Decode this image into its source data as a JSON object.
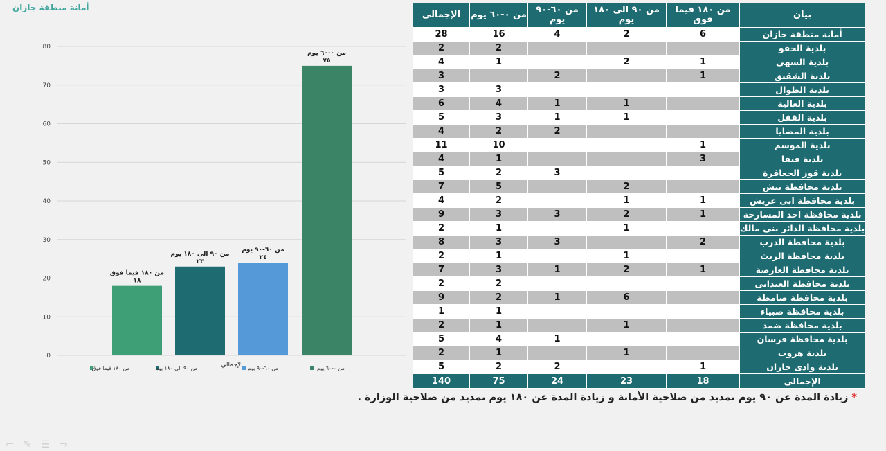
{
  "header": {
    "logo_text": "أمانة منطقة جازان"
  },
  "chart_data": {
    "type": "bar",
    "categories": [
      "من ١٨٠ فيما فوق",
      "من ٩٠ الى ١٨٠ يوم",
      "من ٦٠-٩٠ يوم",
      "من ٠-٦٠ يوم"
    ],
    "category_label_lines": [
      [
        "من ١٨٠ فيما فوق"
      ],
      [
        "من ٩٠ الى ١٨٠ يوم"
      ],
      [
        "من ٦٠-٩٠ يوم"
      ],
      [
        "من ٠-٦٠ يوم"
      ]
    ],
    "values": [
      18,
      23,
      24,
      75
    ],
    "value_labels": [
      "١٨",
      "٢٣",
      "٢٤",
      "٧٥"
    ],
    "colors": [
      "#3e9e75",
      "#1f6b72",
      "#5599d9",
      "#3c8466"
    ],
    "legend": [
      "من ١٨٠ فيما فوق",
      "من ٩٠ الى ١٨٠ يوم",
      "من ٦٠-٩٠ يوم",
      "من ٠-٦٠ يوم"
    ],
    "xlabel": "الإجمالي",
    "ylim": [
      0,
      80
    ],
    "yticks": [
      0,
      10,
      20,
      30,
      40,
      50,
      60,
      70,
      80
    ],
    "grid": true,
    "legend_position": "bottom"
  },
  "table": {
    "headers": [
      "بيان",
      "من ١٨٠ فيما فوق",
      "من ٩٠ الى ١٨٠ يوم",
      "من ٦٠-٩٠ يوم",
      "من ٠-٦٠ يوم",
      "الإجمالى"
    ],
    "rows": [
      {
        "name": "أمانة منطقة جازان",
        "values": [
          "6",
          "2",
          "4",
          "16",
          "28"
        ]
      },
      {
        "name": "بلدية الحقو",
        "values": [
          "",
          "",
          "",
          "2",
          "2"
        ]
      },
      {
        "name": "بلدية السهى",
        "values": [
          "1",
          "2",
          "",
          "1",
          "4"
        ]
      },
      {
        "name": "بلدية الشقيق",
        "values": [
          "1",
          "",
          "2",
          "",
          "3"
        ]
      },
      {
        "name": "بلدية الطوال",
        "values": [
          "",
          "",
          "",
          "3",
          "3"
        ]
      },
      {
        "name": "بلدية العالية",
        "values": [
          "",
          "1",
          "1",
          "4",
          "6"
        ]
      },
      {
        "name": "بلدية القفل",
        "values": [
          "",
          "1",
          "1",
          "3",
          "5"
        ]
      },
      {
        "name": "بلدية المضايا",
        "values": [
          "",
          "",
          "2",
          "2",
          "4"
        ]
      },
      {
        "name": "بلدية الموسم",
        "values": [
          "1",
          "",
          "",
          "10",
          "11"
        ]
      },
      {
        "name": "بلدية فيفا",
        "values": [
          "3",
          "",
          "",
          "1",
          "4"
        ]
      },
      {
        "name": "بلدية قوز الجعافرة",
        "values": [
          "",
          "",
          "3",
          "2",
          "5"
        ]
      },
      {
        "name": "بلدية محافظة بيش",
        "values": [
          "",
          "2",
          "",
          "5",
          "7"
        ]
      },
      {
        "name": "بلدية محافظة ابى عريش",
        "values": [
          "1",
          "1",
          "",
          "2",
          "4"
        ]
      },
      {
        "name": "بلدية محافظة احد المسارحة",
        "values": [
          "1",
          "2",
          "3",
          "3",
          "9"
        ]
      },
      {
        "name": "بلدية محافظة الدائر بنى مالك",
        "values": [
          "",
          "1",
          "",
          "1",
          "2"
        ]
      },
      {
        "name": "بلدية محافظة الدرب",
        "values": [
          "2",
          "",
          "3",
          "3",
          "8"
        ]
      },
      {
        "name": "بلدية محافظة الريث",
        "values": [
          "",
          "1",
          "",
          "1",
          "2"
        ]
      },
      {
        "name": "بلدية محافظة العارضة",
        "values": [
          "1",
          "2",
          "1",
          "3",
          "7"
        ]
      },
      {
        "name": "بلدية محافظة العيدابى",
        "values": [
          "",
          "",
          "",
          "2",
          "2"
        ]
      },
      {
        "name": "بلدية محافظة صامطة",
        "values": [
          "",
          "6",
          "1",
          "2",
          "9"
        ]
      },
      {
        "name": "بلدية محافظة صبياء",
        "values": [
          "",
          "",
          "",
          "1",
          "1"
        ]
      },
      {
        "name": "بلدية محافظة ضمد",
        "values": [
          "",
          "1",
          "",
          "1",
          "2"
        ]
      },
      {
        "name": "بلدية محافظة فرسان",
        "values": [
          "",
          "",
          "1",
          "4",
          "5"
        ]
      },
      {
        "name": "بلدية هروب",
        "values": [
          "",
          "1",
          "",
          "1",
          "2"
        ]
      },
      {
        "name": "بلدية وادى جازان",
        "values": [
          "1",
          "",
          "2",
          "2",
          "5"
        ]
      }
    ],
    "total": {
      "name": "الإجمالى",
      "values": [
        "18",
        "23",
        "24",
        "75",
        "140"
      ]
    }
  },
  "footnote": {
    "star": "*",
    "text": "زيادة المدة عن ٩٠ يوم تمديد من صلاحية الأمانة و زيادة المدة عن ١٨٠ يوم تمديد من صلاحية الوزارة ."
  },
  "nav": {
    "icons": [
      "arrow-left-icon",
      "pen-icon",
      "menu-icon",
      "arrow-right-icon"
    ]
  }
}
